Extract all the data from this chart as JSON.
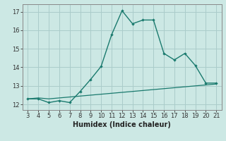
{
  "x": [
    3,
    4,
    5,
    6,
    7,
    8,
    9,
    10,
    11,
    12,
    13,
    14,
    15,
    16,
    17,
    18,
    19,
    20,
    21
  ],
  "y_upper": [
    12.3,
    12.3,
    12.1,
    12.2,
    12.1,
    12.7,
    13.35,
    14.05,
    15.75,
    17.05,
    16.35,
    16.55,
    16.55,
    14.75,
    14.4,
    14.75,
    14.1,
    13.15,
    13.15
  ],
  "y_lower": [
    12.3,
    12.35,
    12.3,
    12.35,
    12.4,
    12.45,
    12.5,
    12.55,
    12.6,
    12.65,
    12.7,
    12.75,
    12.8,
    12.85,
    12.9,
    12.95,
    13.0,
    13.05,
    13.1
  ],
  "line_color": "#1a7a6e",
  "bg_color": "#cce8e4",
  "grid_color": "#aaccca",
  "xlabel": "Humidex (Indice chaleur)",
  "ylim": [
    11.7,
    17.4
  ],
  "xlim": [
    2.5,
    21.5
  ],
  "yticks": [
    12,
    13,
    14,
    15,
    16,
    17
  ],
  "xticks": [
    3,
    4,
    5,
    6,
    7,
    8,
    9,
    10,
    11,
    12,
    13,
    14,
    15,
    16,
    17,
    18,
    19,
    20,
    21
  ],
  "tick_fontsize": 6.0,
  "xlabel_fontsize": 7.0
}
